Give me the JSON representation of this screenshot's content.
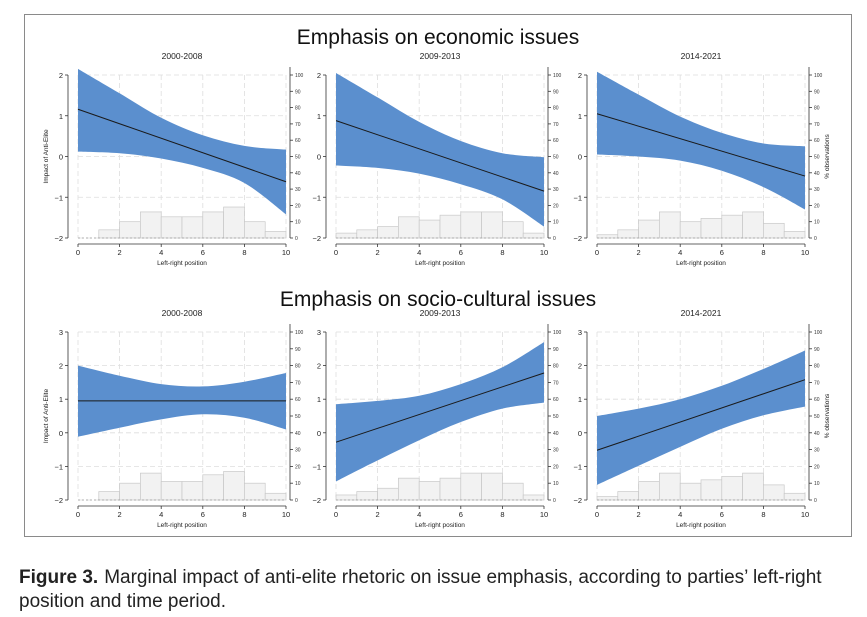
{
  "figure": {
    "label": "Figure 3.",
    "caption": "Marginal impact of anti-elite rhetoric on issue emphasis, according to parties’ left-right position and time period."
  },
  "colors": {
    "band": "#5b8fce",
    "line": "#1a1a1a",
    "hist_fill": "#f2f2f2",
    "hist_stroke": "#c8c8c8",
    "grid": "#dedede"
  },
  "rows": [
    {
      "title": "Emphasis on economic issues"
    },
    {
      "title": "Emphasis on socio-cultural issues"
    }
  ],
  "chart_data": [
    {
      "type": "line",
      "row": 0,
      "col": 0,
      "title": "2000-2008",
      "xlabel": "Left-right position",
      "ylabel": "Impact of Anti-Elite",
      "ylabel2": "",
      "xlim": [
        0,
        10
      ],
      "ylim": [
        -2,
        2
      ],
      "x_ticks": [
        0,
        2,
        4,
        6,
        8,
        10
      ],
      "y_ticks": [
        -2,
        -1,
        0,
        1,
        2
      ],
      "y2_ticks": [
        0,
        10,
        20,
        30,
        40,
        50,
        60,
        70,
        80,
        90,
        100
      ],
      "band_x": [
        0,
        2,
        4,
        6,
        8,
        10
      ],
      "band_upper": [
        2.15,
        1.55,
        0.95,
        0.52,
        0.26,
        0.17
      ],
      "band_lower": [
        0.12,
        0.08,
        -0.05,
        -0.28,
        -0.65,
        -1.42
      ],
      "line_x": [
        0,
        10
      ],
      "line_y": [
        1.16,
        -0.62
      ],
      "hist_x": [
        0.5,
        1.5,
        2.5,
        3.5,
        4.5,
        5.5,
        6.5,
        7.5,
        8.5,
        9.5
      ],
      "hist_pct": [
        0,
        5,
        10,
        16,
        13,
        13,
        16,
        19,
        10,
        4
      ]
    },
    {
      "type": "line",
      "row": 0,
      "col": 1,
      "title": "2009-2013",
      "xlabel": "Left-right position",
      "ylabel": "",
      "ylabel2": "",
      "xlim": [
        0,
        10
      ],
      "ylim": [
        -2,
        2
      ],
      "x_ticks": [
        0,
        2,
        4,
        6,
        8,
        10
      ],
      "y_ticks": [
        -2,
        -1,
        0,
        1,
        2
      ],
      "y2_ticks": [
        0,
        10,
        20,
        30,
        40,
        50,
        60,
        70,
        80,
        90,
        100
      ],
      "band_x": [
        0,
        2,
        4,
        6,
        8,
        10
      ],
      "band_upper": [
        2.05,
        1.45,
        0.85,
        0.38,
        0.08,
        -0.02
      ],
      "band_lower": [
        -0.22,
        -0.28,
        -0.42,
        -0.68,
        -1.05,
        -1.72
      ],
      "line_x": [
        0,
        10
      ],
      "line_y": [
        0.88,
        -0.85
      ],
      "hist_x": [
        0.5,
        1.5,
        2.5,
        3.5,
        4.5,
        5.5,
        6.5,
        7.5,
        8.5,
        9.5
      ],
      "hist_pct": [
        3,
        5,
        7,
        13,
        11,
        14,
        16,
        16,
        10,
        3
      ]
    },
    {
      "type": "line",
      "row": 0,
      "col": 2,
      "title": "2014-2021",
      "xlabel": "Left-right position",
      "ylabel": "",
      "ylabel2": "% observations",
      "xlim": [
        0,
        10
      ],
      "ylim": [
        -2,
        2
      ],
      "x_ticks": [
        0,
        2,
        4,
        6,
        8,
        10
      ],
      "y_ticks": [
        -2,
        -1,
        0,
        1,
        2
      ],
      "y2_ticks": [
        0,
        10,
        20,
        30,
        40,
        50,
        60,
        70,
        80,
        90,
        100
      ],
      "band_x": [
        0,
        2,
        4,
        6,
        8,
        10
      ],
      "band_upper": [
        2.08,
        1.52,
        0.98,
        0.58,
        0.32,
        0.25
      ],
      "band_lower": [
        0.05,
        0.0,
        -0.1,
        -0.35,
        -0.75,
        -1.3
      ],
      "line_x": [
        0,
        10
      ],
      "line_y": [
        1.05,
        -0.48
      ],
      "hist_x": [
        0.5,
        1.5,
        2.5,
        3.5,
        4.5,
        5.5,
        6.5,
        7.5,
        8.5,
        9.5
      ],
      "hist_pct": [
        2,
        5,
        11,
        16,
        10,
        12,
        14,
        16,
        9,
        4
      ]
    },
    {
      "type": "line",
      "row": 1,
      "col": 0,
      "title": "2000-2008",
      "xlabel": "Left-right position",
      "ylabel": "Impact of Anti-Elite",
      "ylabel2": "",
      "xlim": [
        0,
        10
      ],
      "ylim": [
        -2,
        3
      ],
      "x_ticks": [
        0,
        2,
        4,
        6,
        8,
        10
      ],
      "y_ticks": [
        -2,
        -1,
        0,
        1,
        2,
        3
      ],
      "y2_ticks": [
        0,
        10,
        20,
        30,
        40,
        50,
        60,
        70,
        80,
        90,
        100
      ],
      "band_x": [
        0,
        2,
        4,
        6,
        8,
        10
      ],
      "band_upper": [
        2.0,
        1.7,
        1.45,
        1.38,
        1.52,
        1.78
      ],
      "band_lower": [
        -0.12,
        0.15,
        0.4,
        0.55,
        0.45,
        0.1
      ],
      "line_x": [
        0,
        10
      ],
      "line_y": [
        0.95,
        0.95
      ],
      "hist_x": [
        0.5,
        1.5,
        2.5,
        3.5,
        4.5,
        5.5,
        6.5,
        7.5,
        8.5,
        9.5
      ],
      "hist_pct": [
        0,
        5,
        10,
        16,
        11,
        11,
        15,
        17,
        10,
        4
      ]
    },
    {
      "type": "line",
      "row": 1,
      "col": 1,
      "title": "2009-2013",
      "xlabel": "Left-right position",
      "ylabel": "",
      "ylabel2": "",
      "xlim": [
        0,
        10
      ],
      "ylim": [
        -2,
        3
      ],
      "x_ticks": [
        0,
        2,
        4,
        6,
        8,
        10
      ],
      "y_ticks": [
        -2,
        -1,
        0,
        1,
        2,
        3
      ],
      "y2_ticks": [
        0,
        10,
        20,
        30,
        40,
        50,
        60,
        70,
        80,
        90,
        100
      ],
      "band_x": [
        0,
        2,
        4,
        6,
        8,
        10
      ],
      "band_upper": [
        0.85,
        0.95,
        1.1,
        1.45,
        1.95,
        2.7
      ],
      "band_lower": [
        -1.45,
        -0.82,
        -0.22,
        0.32,
        0.72,
        0.9
      ],
      "line_x": [
        0,
        10
      ],
      "line_y": [
        -0.28,
        1.78
      ],
      "hist_x": [
        0.5,
        1.5,
        2.5,
        3.5,
        4.5,
        5.5,
        6.5,
        7.5,
        8.5,
        9.5
      ],
      "hist_pct": [
        3,
        5,
        7,
        13,
        11,
        13,
        16,
        16,
        10,
        3
      ]
    },
    {
      "type": "line",
      "row": 1,
      "col": 2,
      "title": "2014-2021",
      "xlabel": "Left-right position",
      "ylabel": "",
      "ylabel2": "% observations",
      "xlim": [
        0,
        10
      ],
      "ylim": [
        -2,
        3
      ],
      "x_ticks": [
        0,
        2,
        4,
        6,
        8,
        10
      ],
      "y_ticks": [
        -2,
        -1,
        0,
        1,
        2,
        3
      ],
      "y2_ticks": [
        0,
        10,
        20,
        30,
        40,
        50,
        60,
        70,
        80,
        90,
        100
      ],
      "band_x": [
        0,
        2,
        4,
        6,
        8,
        10
      ],
      "band_upper": [
        0.5,
        0.72,
        1.0,
        1.4,
        1.9,
        2.45
      ],
      "band_lower": [
        -1.55,
        -0.98,
        -0.42,
        0.12,
        0.52,
        0.78
      ],
      "line_x": [
        0,
        10
      ],
      "line_y": [
        -0.52,
        1.58
      ],
      "hist_x": [
        0.5,
        1.5,
        2.5,
        3.5,
        4.5,
        5.5,
        6.5,
        7.5,
        8.5,
        9.5
      ],
      "hist_pct": [
        2,
        5,
        11,
        16,
        10,
        12,
        14,
        16,
        9,
        4
      ]
    }
  ]
}
